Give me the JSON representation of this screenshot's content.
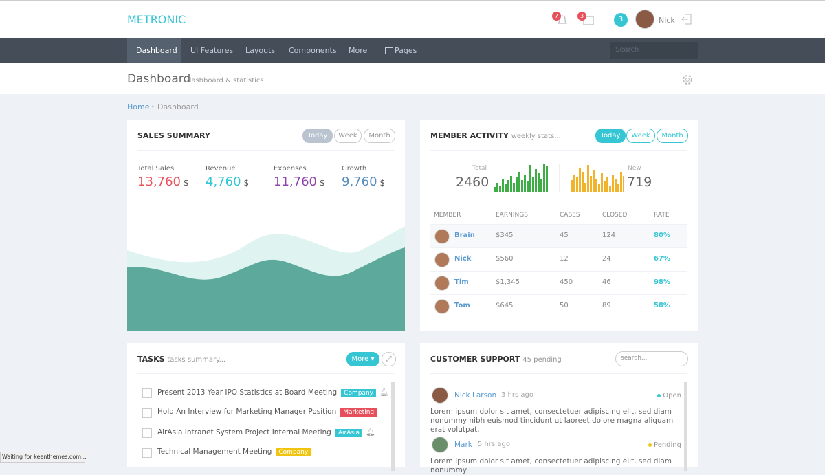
{
  "header": {
    "logo": "METRONIC",
    "notifications": "7",
    "calendar": "3",
    "messages": "3",
    "user": "Nick"
  },
  "nav": {
    "items": [
      "Dashboard",
      "UI Features",
      "Layouts",
      "Components",
      "More",
      "Pages"
    ],
    "search": "Search"
  },
  "page": {
    "title": "Dashboard",
    "subtitle": "dashboard & statistics"
  },
  "breadcrumb": [
    "Home",
    "Dashboard"
  ],
  "sales_summary": {
    "title": "SALES SUMMARY",
    "tabs": [
      "Today",
      "Week",
      "Month"
    ],
    "stats": [
      {
        "label": "Total Sales",
        "value": "13,760",
        "unit": "$"
      },
      {
        "label": "Revenue",
        "value": "4,760",
        "unit": "$"
      },
      {
        "label": "Expenses",
        "value": "11,760",
        "unit": "$"
      },
      {
        "label": "Growth",
        "value": "9,760",
        "unit": "$"
      }
    ]
  },
  "member_activity": {
    "title": "MEMBER ACTIVITY",
    "subtitle": "weekly stats...",
    "tabs": [
      "Today",
      "Week",
      "Month"
    ],
    "total": {
      "label": "Total",
      "value": "2460",
      "bars": [
        8,
        14,
        10,
        20,
        12,
        18,
        24,
        14,
        22,
        30,
        18,
        26,
        16,
        40,
        22,
        34,
        28,
        20,
        42,
        38
      ]
    },
    "new": {
      "label": "New",
      "value": "719",
      "bars": [
        18,
        26,
        22,
        36,
        30,
        14,
        40,
        24,
        32,
        20,
        12,
        28,
        16,
        22,
        10,
        26,
        20,
        12,
        30,
        24
      ]
    },
    "table": {
      "columns": [
        "MEMBER",
        "EARNINGS",
        "CASES",
        "CLOSED",
        "RATE"
      ],
      "rows": [
        [
          "Brain",
          "$345",
          "45",
          "124",
          "80%"
        ],
        [
          "Nick",
          "$560",
          "12",
          "24",
          "67%"
        ],
        [
          "Tim",
          "$1,345",
          "450",
          "46",
          "98%"
        ],
        [
          "Tom",
          "$645",
          "50",
          "89",
          "58%"
        ]
      ]
    }
  },
  "tasks": {
    "title": "TASKS",
    "subtitle": "tasks summary...",
    "button": "More",
    "items": [
      {
        "text": "Present 2013 Year IPO Statistics at Board Meeting",
        "tag": "Company"
      },
      {
        "text": "Hold An Interview for Marketing Manager Position",
        "tag": "Marketing"
      },
      {
        "text": "AirAsia Intranet System Project Internal Meeting",
        "tag": "AirAsia"
      },
      {
        "text": "Technical Management Meeting",
        "tag": "Company"
      }
    ]
  },
  "customer_support": {
    "title": "CUSTOMER SUPPORT",
    "subtitle": "45 pending",
    "search": "search...",
    "messages": [
      {
        "name": "Nick Larson",
        "time": "3 hrs ago",
        "status": "Open",
        "text": "Lorem ipsum dolor sit amet, consectetuer adipiscing elit, sed diam nonummy nibh euismod tincidunt ut laoreet dolore magna aliquam erat volutpat."
      },
      {
        "name": "Mark",
        "time": "5 hrs ago",
        "status": "Pending",
        "text": "Lorem ipsum dolor sit amet, consectetuer adipiscing elit, sed diam nonummy"
      }
    ]
  },
  "status_bar": "Waiting for keenthemes.com..."
}
